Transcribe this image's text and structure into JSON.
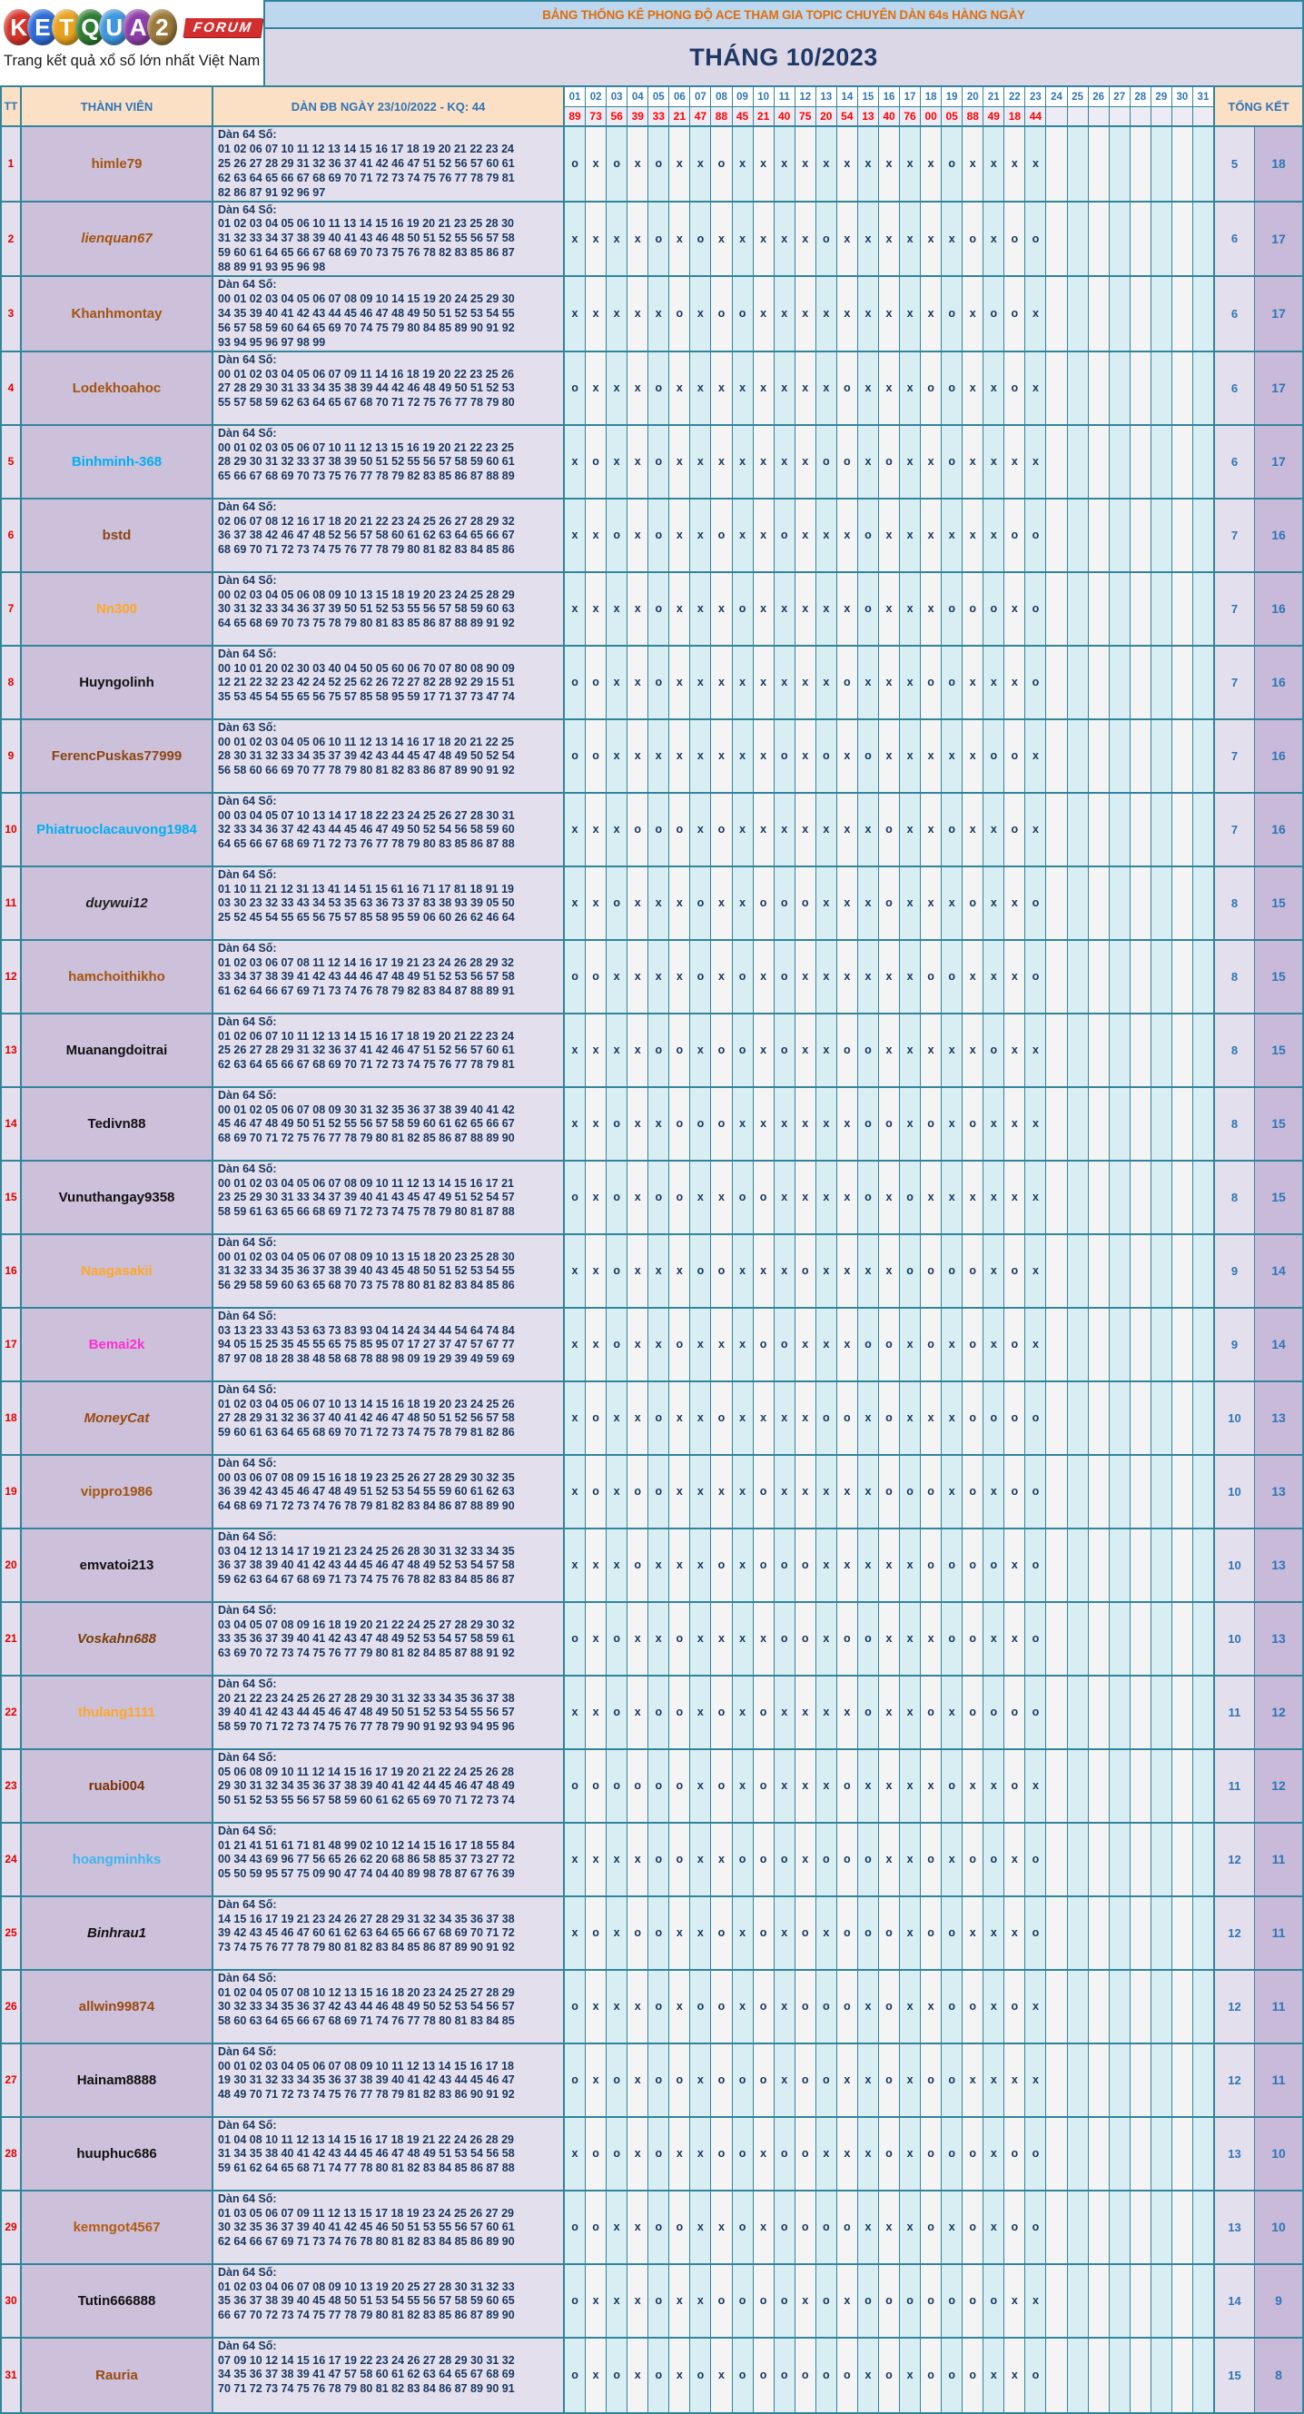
{
  "logo": {
    "letters": [
      {
        "ch": "K",
        "color": "#D7342B"
      },
      {
        "ch": "E",
        "color": "#2E6DD8"
      },
      {
        "ch": "T",
        "color": "#E8A21E"
      },
      {
        "ch": "Q",
        "color": "#2E7D32"
      },
      {
        "ch": "U",
        "color": "#3F97E0"
      },
      {
        "ch": "A",
        "color": "#8E3FAA"
      },
      {
        "ch": "2",
        "color": "#9C7A3C"
      }
    ],
    "forum_label": "FORUM",
    "tagline": "Trang kết quả xổ số lớn nhất Việt Nam"
  },
  "banner": {
    "title": "BẢNG THỐNG KÊ PHONG ĐỘ ACE THAM GIA TOPIC CHUYÊN DÀN 64s HÀNG NGÀY",
    "month": "THÁNG 10/2023"
  },
  "header": {
    "tt": "TT",
    "member": "THÀNH VIÊN",
    "dan": "DÀN ĐB NGÀY 23/10/2022 - KQ: 44",
    "total": "TỔNG KẾT",
    "days": [
      "01",
      "02",
      "03",
      "04",
      "05",
      "06",
      "07",
      "08",
      "09",
      "10",
      "11",
      "12",
      "13",
      "14",
      "15",
      "16",
      "17",
      "18",
      "19",
      "20",
      "21",
      "22",
      "23",
      "24",
      "25",
      "26",
      "27",
      "28",
      "29",
      "30",
      "31"
    ],
    "results": [
      "89",
      "73",
      "56",
      "39",
      "33",
      "21",
      "47",
      "88",
      "45",
      "21",
      "40",
      "75",
      "20",
      "54",
      "13",
      "40",
      "76",
      "00",
      "05",
      "88",
      "49",
      "18",
      "44",
      "",
      "",
      "",
      "",
      "",
      "",
      "",
      ""
    ]
  },
  "rows": [
    {
      "tt": "1",
      "name": "himle79",
      "color": "#A3540F",
      "italic": false,
      "label": "Dàn 64 Số:",
      "lines": [
        "01 02 06 07 10 11 12 13 14 15 16 17 18 19 20 21 22 23 24",
        "25 26 27 28 29 31 32 36 37 41 42 46 47 51 52 56 57 60 61",
        "62 63 64 65 66 67 68 69 70 71 72 73 74 75 76 77 78 79 81",
        "82 86 87 91 92 96 97"
      ],
      "marks": "oxoxoxxoxxxxxxxxxxoxxxx",
      "o_total": "5",
      "x_total": "18"
    },
    {
      "tt": "2",
      "name": "lienquan67",
      "color": "#A3540F",
      "italic": true,
      "label": "Dàn 64 Số:",
      "lines": [
        "01 02 03 04 05 06 10 11 13 14 15 16 19 20 21 23 25 28 30",
        "31 32 33 34 37 38 39 40 41 43 46 48 50 51 52 55 56 57 58",
        "59 60 61 64 65 66 67 68 69 70 73 75 76 78 82 83 85 86 87",
        "88 89 91 93 95 96 98"
      ],
      "marks": "xxxxoxoxxxxxoxxxxxxoxoo",
      "o_total": "6",
      "x_total": "17"
    },
    {
      "tt": "3",
      "name": "Khanhmontay",
      "color": "#A3540F",
      "italic": false,
      "label": "Dàn 64 Số:",
      "lines": [
        "00 01 02 03 04 05 06 07 08 09 10 14 15 19 20 24 25 29 30",
        "34 35 39 40 41 42 43 44 45 46 47 48 49 50 51 52 53 54 55",
        "56 57 58 59 60 64 65 69 70 74 75 79 80 84 85 89 90 91 92",
        "93 94 95 96 97 98 99"
      ],
      "marks": "xxxxxoxooxxxxxxxxxoxoox",
      "o_total": "6",
      "x_total": "17"
    },
    {
      "tt": "4",
      "name": "Lodekhoahoc",
      "color": "#A3540F",
      "italic": false,
      "label": "Dàn 64 Số:",
      "lines": [
        "00 01 02 03 04 05 06 07 09 11 14 16 18 19 20 22 23 25 26",
        "27 28 29 30 31 33 34 35 38 39 44 42 46 48 49 50 51 52 53",
        "55 57 58 59 62 63 64 65 67 68 70 71 72 75 76 77 78 79 80"
      ],
      "marks": "oxxxoxxxxxxxxoxxxooxxox",
      "o_total": "6",
      "x_total": "17"
    },
    {
      "tt": "5",
      "name": "Binhminh-368",
      "color": "#00B0F0",
      "italic": false,
      "label": "Dàn 64 Số:",
      "lines": [
        "00 01 02 03 05 06 07 10 11 12 13 15 16 19 20 21 22 23 25",
        "28 29 30 31 32 33 37 38 39 50 51 52 55 56 57 58 59 60 61",
        "65 66 67 68 69 70 73 75 76 77 78 79 82 83 85 86 87 88 89"
      ],
      "marks": "xoxxoxxxxxxxooxoxxoxxxx",
      "o_total": "6",
      "x_total": "17"
    },
    {
      "tt": "6",
      "name": "bstd",
      "color": "#8C4510",
      "italic": false,
      "label": "Dàn 64 Số:",
      "lines": [
        "02 06 07 08 12 16 17 18 20 21 22 23 24 25 26 27 28 29 32",
        "36 37 38 42 46 47 48 52 56 57 58 60 61 62 63 64 65 66 67",
        "68 69 70 71 72 73 74 75 76 77 78 79 80 81 82 83 84 85 86"
      ],
      "marks": "xxoxoxxoxxoxxxoxxxxxxoo",
      "o_total": "7",
      "x_total": "16"
    },
    {
      "tt": "7",
      "name": "Nn300",
      "color": "#FFA826",
      "italic": false,
      "label": "Dàn 64 Số:",
      "lines": [
        "00 02 03 04 05 06 08 09 10 13 15 18 19 20 23 24 25 28 29",
        "30 31 32 33 34 36 37 39 50 51 52 53 55 56 57 58 59 60 63",
        "64 65 68 69 70 73 75 78 79 80 81 83 85 86 87 88 89 91 92"
      ],
      "marks": "xxxxoxxxoxxxxxoxxxoooxo",
      "o_total": "7",
      "x_total": "16"
    },
    {
      "tt": "8",
      "name": "Huyngolinh",
      "color": "#111111",
      "italic": false,
      "label": "Dàn 64 Số:",
      "lines": [
        "00 10 01 20 02 30 03 40 04 50 05 60 06 70 07 80 08 90 09",
        "12 21 22 32 23 42 24 52 25 62 26 72 27 82 28 92 29 15 51",
        "35 53 45 54 55 65 56 75 57 85 58 95 59 17 71 37 73 47 74"
      ],
      "marks": "ooxxoxxxxxxxxoxxxooxxxo",
      "o_total": "7",
      "x_total": "16"
    },
    {
      "tt": "9",
      "name": "FerencPuskas77999",
      "color": "#8C4510",
      "italic": false,
      "label": "Dàn 63 Số:",
      "lines": [
        "00 01 02 03 04 05 06 10 11 12 13 14 16 17 18 20 21 22 25",
        "28 30 31 32 33 34 35 37 39 42 43 44 45 47 48 49 50 52 54",
        "56 58 60 66 69 70 77 78 79 80 81 82 83 86 87 89 90 91 92"
      ],
      "marks": "ooxxxxxxxxoxoxoxxxxxoox",
      "o_total": "7",
      "x_total": "16"
    },
    {
      "tt": "10",
      "name": "Phiatruoclacauvong1984",
      "color": "#00B0F0",
      "italic": false,
      "label": "Dàn 64 Số:",
      "lines": [
        "00 03 04 05 07 10 13 14 17 18 22 23 24 25 26 27 28 30 31",
        "32 33 34 36 37 42 43 44 45 46 47 49 50 52 54 56 58 59 60",
        "64 65 66 67 68 69 71 72 73 76 77 78 79 80 83 85 86 87 88"
      ],
      "marks": "xxxoooxoxxxxxxxoxxoxxox",
      "o_total": "7",
      "x_total": "16"
    },
    {
      "tt": "11",
      "name": "duywui12",
      "color": "#222222",
      "italic": true,
      "label": "Dàn 64 Số:",
      "lines": [
        "01 10 11 21 12 31 13 41 14 51 15 61 16 71 17 81 18 91 19",
        "03 30 23 32 33 43 34 53 35 63 36 73 37 83 38 93 39 05 50",
        "25 52 45 54 55 65 56 75 57 85 58 95 59 06 60 26 62 46 64"
      ],
      "marks": "xxoxxxoxxoooxxxoxxxoxxo",
      "o_total": "8",
      "x_total": "15"
    },
    {
      "tt": "12",
      "name": "hamchoithikho",
      "color": "#A3540F",
      "italic": false,
      "label": "Dàn 64 Số:",
      "lines": [
        "01 02 03 06 07 08 11 12 14 16 17 19 21 23 24 26 28 29 32",
        "33 34 37 38 39 41 42 43 44 46 47 48 49 51 52 53 56 57 58",
        "61 62 64 66 67 69 71 73 74 76 78 79 82 83 84 87 88 89 91"
      ],
      "marks": "ooxxxxoxoxoxxxxxxooxxxo",
      "o_total": "8",
      "x_total": "15"
    },
    {
      "tt": "13",
      "name": "Muanangdoitrai",
      "color": "#111111",
      "italic": false,
      "label": "Dàn 64 Số:",
      "lines": [
        "01 02 06 07 10 11 12 13 14 15 16 17 18 19 20 21 22 23 24",
        "25 26 27 28 29 31 32 36 37 41 42 46 47 51 52 56 57 60 61",
        "62 63 64 65 66 67 68 69 70 71 72 73 74 75 76 77 78 79 81"
      ],
      "marks": "xxxxooxooxoxxooxxxxxoxx",
      "o_total": "8",
      "x_total": "15"
    },
    {
      "tt": "14",
      "name": "Tedivn88",
      "color": "#111111",
      "italic": false,
      "label": "Dàn 64 Số:",
      "lines": [
        "00 01 02 05 06 07 08 09 30 31 32 35 36 37 38 39 40 41 42",
        "45 46 47 48 49 50 51 52 55 56 57 58 59 60 61 62 65 66 67",
        "68 69 70 71 72 75 76 77 78 79 80 81 82 85 86 87 88 89 90"
      ],
      "marks": "xxoxxoooxxxxxxooxoxoxxx",
      "o_total": "8",
      "x_total": "15"
    },
    {
      "tt": "15",
      "name": "Vunuthangay9358",
      "color": "#111111",
      "italic": false,
      "label": "Dàn 64 Số:",
      "lines": [
        "00 01 02 03 04 05 06 07 08 09 10 11 12 13 14 15 16 17 21",
        "23 25 29 30 31 33 34 37 39 40 41 43 45 47 49 51 52 54 57",
        "58 59 61 63 65 66 68 69 71 72 73 74 75 78 79 80 81 87 88"
      ],
      "marks": "oxoxooxxooxxxxoxoxxxxxx",
      "o_total": "8",
      "x_total": "15"
    },
    {
      "tt": "16",
      "name": "Naagasakii",
      "color": "#FFA826",
      "italic": false,
      "label": "Dàn 64 Số:",
      "lines": [
        "00 01 02 03 04 05 06 07 08 09 10 13 15 18 20 23 25 28 30",
        "31 32 33 34 35 36 37 38 39 40 43 45 48 50 51 52 53 54 55",
        "56 29 58 59 60 63 65 68 70 73 75 78 80 81 82 83 84 85 86"
      ],
      "marks": "xxoxxxooxxxoxxxxooooxox",
      "o_total": "9",
      "x_total": "14"
    },
    {
      "tt": "17",
      "name": "Bemai2k",
      "color": "#FF2ED2",
      "italic": false,
      "label": "Dàn 64 Số:",
      "lines": [
        "03 13 23 33 43 53 63 73 83 93 04 14 24 34 44 54 64 74 84",
        "94 05 15 25 35 45 55 65 75 85 95 07 17 27 37 47 57 67 77",
        "87 97 08 18 28 38 48 58 68 78 88 98 09 19 29 39 49 59 69"
      ],
      "marks": "xxoxxoxxxooxxxooxoxoxox",
      "o_total": "9",
      "x_total": "14"
    },
    {
      "tt": "18",
      "name": "MoneyCat",
      "color": "#9A4A10",
      "italic": true,
      "label": "Dàn 64 Số:",
      "lines": [
        "01 02 03 04 05 06 07 10 13 14 15 16 18 19 20 23 24 25 26",
        "27 28 29 31 32 36 37 40 41 42 46 47 48 50 51 52 56 57 58",
        "59 60 61 63 64 65 68 69 70 71 72 73 74 75 78 79 81 82 86"
      ],
      "marks": "xoxxoxxoxxxxooxoxxxoooo",
      "o_total": "10",
      "x_total": "13"
    },
    {
      "tt": "19",
      "name": "vippro1986",
      "color": "#A3540F",
      "italic": false,
      "label": "Dàn 64 Số:",
      "lines": [
        "00 03 06 07 08 09 15 16 18 19 23 25 26 27 28 29 30 32 35",
        "36 39 42 43 45 46 47 48 49 51 52 53 54 55 59 60 61 62 63",
        "64 68 69 71 72 73 74 76 78 79 81 82 83 84 86 87 88 89 90"
      ],
      "marks": "xoxooxxxxoxxxxxoooxoxoo",
      "o_total": "10",
      "x_total": "13"
    },
    {
      "tt": "20",
      "name": "emvatoi213",
      "color": "#111111",
      "italic": false,
      "label": "Dàn 64 Số:",
      "lines": [
        "03 04 12 13 14 17 19 21 23 24 25 26 28 30 31 32 33 34 35",
        "36 37 38 39 40 41 42 43 44 45 46 47 48 49 52 53 54 57 58",
        "59 62 63 64 67 68 69 71 73 74 75 76 78 82 83 84 85 86 87"
      ],
      "marks": "xxxoxxxoxoooxxxxxooooxo",
      "o_total": "10",
      "x_total": "13"
    },
    {
      "tt": "21",
      "name": "Voskahn688",
      "color": "#7A3E08",
      "italic": true,
      "label": "Dàn 64 Số:",
      "lines": [
        "03 04 05 07 08 09 16 18 19 20 21 22 24 25 27 28 29 30 32",
        "33 35 36 37 39 40 41 42 43 47 48 49 52 53 54 57 58 59 61",
        "63 69 70 72 73 74 75 76 77 79 80 81 82 84 85 87 88 91 92"
      ],
      "marks": "oxoxxoxxxxooxooxxxooxxo",
      "o_total": "10",
      "x_total": "13"
    },
    {
      "tt": "22",
      "name": "thulang1111",
      "color": "#FFA826",
      "italic": false,
      "label": "Dàn 64 Số:",
      "lines": [
        "20 21 22 23 24 25 26 27 28 29 30 31 32 33 34 35 36 37 38",
        "39 40 41 42 43 44 45 46 47 48 49 50 51 52 53 54 55 56 57",
        "58 59 70 71 72 73 74 75 76 77 78 79 90 91 92 93 94 95 96"
      ],
      "marks": "xxoxooxoxoxxxxoxxoxoooo",
      "o_total": "11",
      "x_total": "12"
    },
    {
      "tt": "23",
      "name": "ruabi004",
      "color": "#7E3208",
      "italic": false,
      "label": "Dàn 64 Số:",
      "lines": [
        "05 06 08 09 10 11 12 14 15 16 17 19 20 21 22 24 25 26 28",
        "29 30 31 32 34 35 36 37 38 39 40 41 42 44 45 46 47 48 49",
        "50 51 52 53 55 56 57 58 59 60 61 62 65 69 70 71 72 73 74"
      ],
      "marks": "ooooooxoxoxxxoxxxxoxxox",
      "o_total": "11",
      "x_total": "12"
    },
    {
      "tt": "24",
      "name": "hoangminhks",
      "color": "#3FB6F0",
      "italic": false,
      "label": "Dàn 64 Số:",
      "lines": [
        "01 21 41 51 61 71 81 48 99 02 10 12 14 15 16 17 18 55 84",
        "00 34 43 69 96 77 56 65 26 62 20 68 86 58 85 37 73 27 72",
        "05 50 59 95 57 75 09 90 47 74 04 40 89 98 78 87 67 76 39"
      ],
      "marks": "xxxxooxxoooxoooxxoxooxo",
      "o_total": "12",
      "x_total": "11"
    },
    {
      "tt": "25",
      "name": "Binhrau1",
      "color": "#111111",
      "italic": true,
      "label": "Dàn 64 Số:",
      "lines": [
        "14 15 16 17 19 21 23 24 26 27 28 29 31 32 34 35 36 37 38",
        "39 42 43 45 46 47 60 61 62 63 64 65 66 67 68 69 70 71 72",
        "73 74 75 76 77 78 79 80 81 82 83 84 85 86 87 89 90 91 92"
      ],
      "marks": "xoxooxxoxoxoxoooxooxxxo",
      "o_total": "12",
      "x_total": "11"
    },
    {
      "tt": "26",
      "name": "allwin99874",
      "color": "#9A4A10",
      "italic": false,
      "label": "Dàn 64 Số:",
      "lines": [
        "01 02 04 05 07 08 10 12 13 15 16 18 20 23 24 25 27 28 29",
        "30 32 33 34 35 36 37 42 43 44 46 48 49 50 52 53 54 56 57",
        "58 60 63 64 65 66 67 68 69 71 74 76 77 78 80 81 83 84 85"
      ],
      "marks": "oxxxoxooxoxoooxoxxooxox",
      "o_total": "12",
      "x_total": "11"
    },
    {
      "tt": "27",
      "name": "Hainam8888",
      "color": "#111111",
      "italic": false,
      "label": "Dàn 64 Số:",
      "lines": [
        "00 01 02 03 04 05 06 07 08 09 10 11 12 13 14 15 16 17 18",
        "19 30 31 32 33 34 35 36 37 38 39 40 41 42 43 44 45 46 47",
        "48 49 70 71 72 73 74 75 76 77 78 79 81 82 83 86 90 91 92"
      ],
      "marks": "oxoxooxoooxooxxoxooxxxx",
      "o_total": "12",
      "x_total": "11"
    },
    {
      "tt": "28",
      "name": "huuphuc686",
      "color": "#111111",
      "italic": false,
      "label": "Dàn 64 Số:",
      "lines": [
        "01 04 08 10 11 12 13 14 15 16 17 18 19 21 22 24 26 28 29",
        "31 34 35 38 40 41 42 43 44 45 46 47 48 49 51 53 54 56 58",
        "59 61 62 64 65 68 71 74 77 78 80 81 82 83 84 85 86 87 88"
      ],
      "marks": "xooxoxxooxooxxxoxoooxoo",
      "o_total": "13",
      "x_total": "10"
    },
    {
      "tt": "29",
      "name": "kemngot4567",
      "color": "#B45B13",
      "italic": false,
      "label": "Dàn 64 Số:",
      "lines": [
        "01 03 05 06 07 09 11 12 13 15 17 18 19 23 24 25 26 27 29",
        "30 32 35 36 37 39 40 41 42 45 46 50 51 53 55 56 57 60 61",
        "62 64 66 67 69 71 73 74 76 78 80 81 82 83 84 85 86 89 90"
      ],
      "marks": "ooxxooxxoxoooox xxoxoxoo",
      "o_total": "13",
      "x_total": "10"
    },
    {
      "tt": "30",
      "name": "Tutin666888",
      "color": "#111111",
      "italic": false,
      "label": "Dàn 64 Số:",
      "lines": [
        "01 02 03 04 06 07 08 09 10 13 19 20 25 27 28 30 31 32 33",
        "35 36 37 38 39 40 45 48 50 51 53 54 55 56 57 58 59 60 65",
        "66 67 70 72 73 74 75 77 78 79 80 81 82 83 85 86 87 89 90"
      ],
      "marks": "oxxxoxxooooxoxoooooooxx",
      "o_total": "14",
      "x_total": "9"
    },
    {
      "tt": "31",
      "name": "Rauria",
      "color": "#9A4A10",
      "italic": false,
      "label": "Dàn 64 Số:",
      "lines": [
        "07 09 10 12 14 15 16 17 19 22 23 24 26 27 28 29 30 31 32",
        "34 35 36 37 38 39 41 47 57 58 60 61 62 63 64 65 67 68 69",
        "70 71 72 73 74 75 76 78 79 80 81 82 83 84 86 87 89 90 91"
      ],
      "marks": "oxoxoxoxooooooxoxoooxxo",
      "o_total": "15",
      "x_total": "8"
    }
  ]
}
